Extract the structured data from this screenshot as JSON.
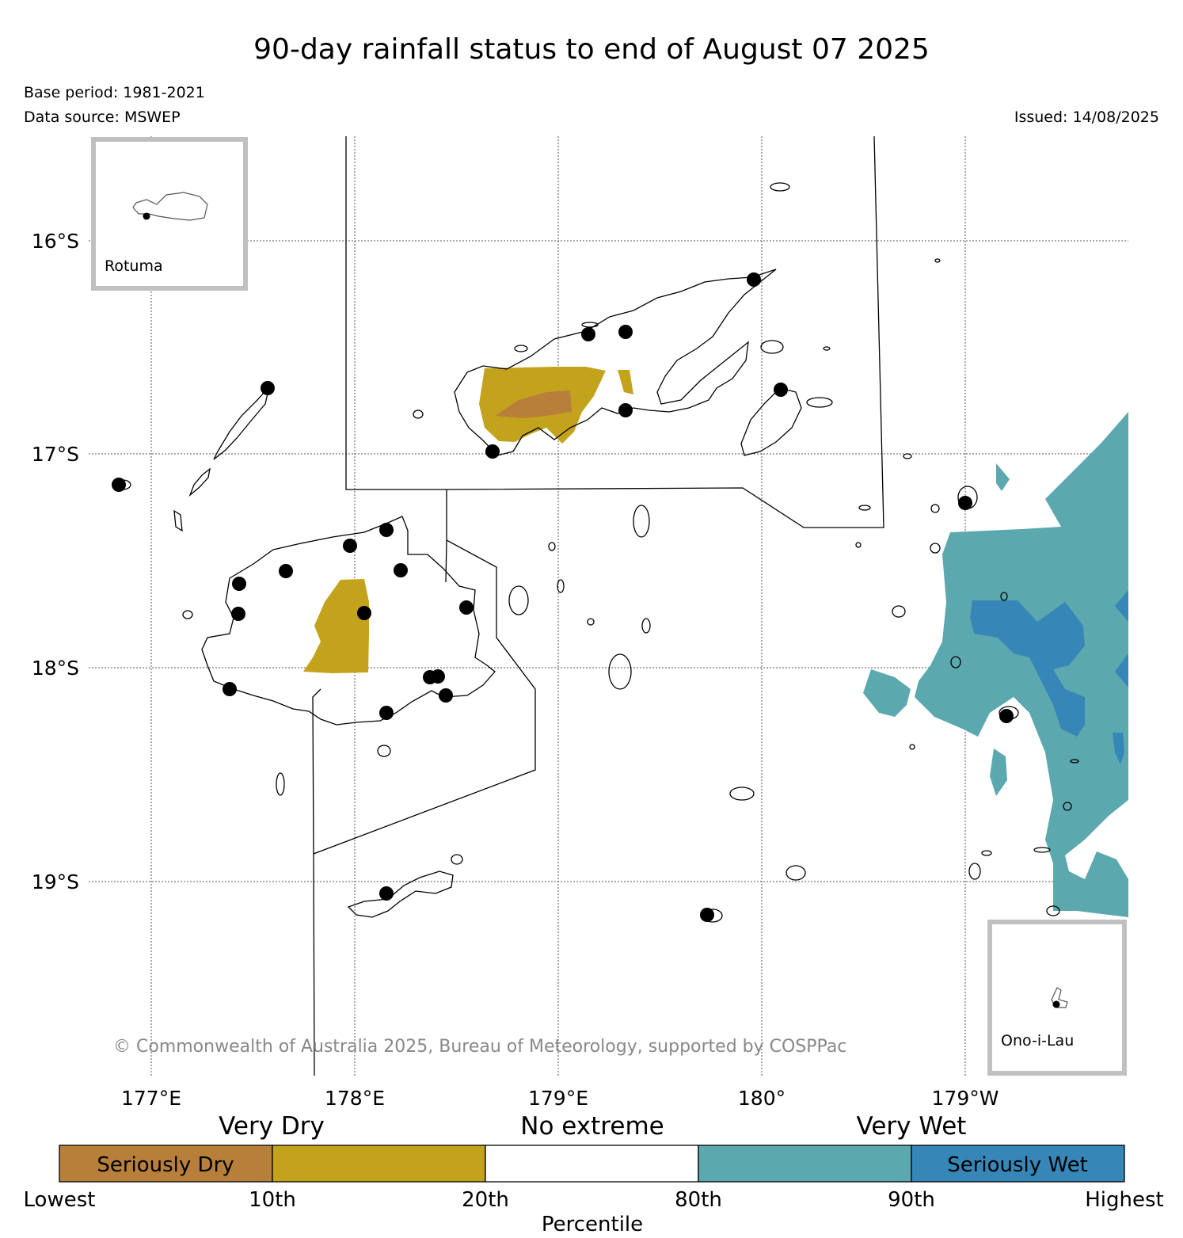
{
  "title": "90-day rainfall status to end of August 07 2025",
  "base_period": "Base period: 1981-2021",
  "data_source": "Data source: MSWEP",
  "issued": "Issued: 14/08/2025",
  "copyright": "© Commonwealth of Australia 2025, Bureau of Meteorology, supported by COSPPac",
  "map": {
    "lat_labels": [
      "16°S",
      "17°S",
      "18°S",
      "19°S"
    ],
    "lon_labels": [
      "177°E",
      "178°E",
      "179°E",
      "180°",
      "179°W"
    ],
    "inset_rotuma": "Rotuma",
    "inset_ono": "Ono-i-Lau"
  },
  "colors": {
    "seriously_dry": "#b87f3a",
    "very_dry": "#c4a31c",
    "no_extreme": "#ffffff",
    "very_wet": "#5ba9ae",
    "seriously_wet": "#3686b8",
    "inset_border": "#c0c0c0"
  },
  "legend": {
    "headers": [
      "Very Dry",
      "No extreme",
      "Very Wet"
    ],
    "box_labels": [
      "Seriously Dry",
      "",
      "",
      "",
      "Seriously Wet"
    ],
    "ticks": [
      "Lowest",
      "10th",
      "20th",
      "80th",
      "90th",
      "Highest"
    ],
    "axis_label": "Percentile"
  }
}
